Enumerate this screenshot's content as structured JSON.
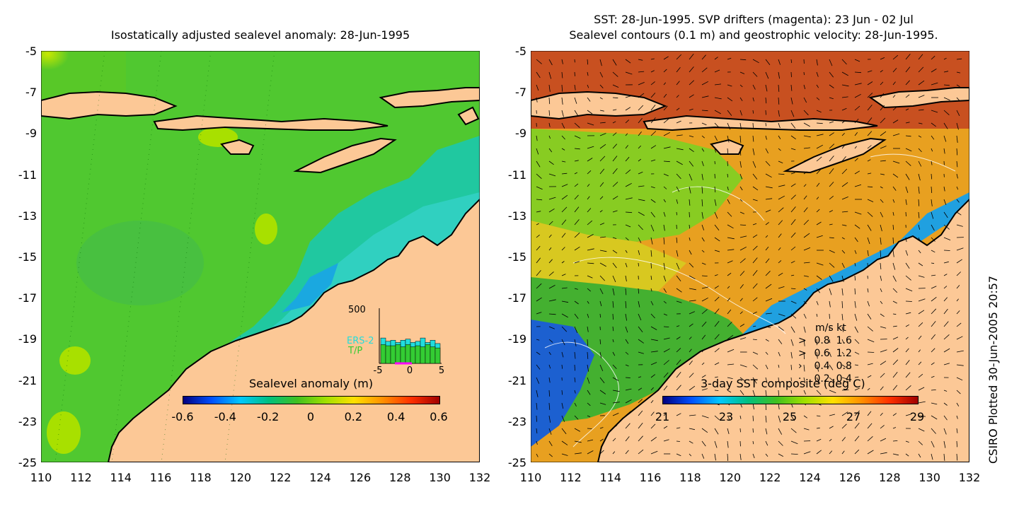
{
  "left_panel": {
    "title": "Isostatically adjusted sealevel anomaly: 28-Jun-1995",
    "y_ticks": [
      "-5",
      "-7",
      "-9",
      "-11",
      "-13",
      "-15",
      "-17",
      "-19",
      "-21",
      "-23",
      "-25"
    ],
    "x_ticks": [
      "110",
      "112",
      "114",
      "116",
      "118",
      "120",
      "122",
      "124",
      "126",
      "128",
      "130",
      "132"
    ],
    "colorbar": {
      "title": "Sealevel anomaly (m)",
      "labels": [
        "-0.6",
        "-0.4",
        "-0.2",
        "0",
        "0.2",
        "0.4",
        "0.6"
      ],
      "colors": [
        "#00007f",
        "#0050ff",
        "#00c8ff",
        "#00c080",
        "#40c020",
        "#a0e000",
        "#ffe000",
        "#ff9000",
        "#ff3000",
        "#a00000"
      ]
    },
    "inset": {
      "ymax_label": "500",
      "series_labels": [
        "ERS-2",
        "T/P"
      ],
      "series_colors": [
        "#22dddd",
        "#33cc33"
      ],
      "x_labels": [
        "-5",
        "0",
        "5"
      ],
      "ers2_counts": [
        230,
        200,
        210,
        190,
        210,
        220,
        190,
        200,
        230,
        190,
        210,
        180
      ],
      "tp_counts": [
        170,
        160,
        160,
        170,
        150,
        170,
        150,
        160,
        150,
        170,
        150,
        140
      ]
    }
  },
  "right_panel": {
    "title_line1": "SST: 28-Jun-1995. SVP drifters (magenta): 23 Jun - 02 Jul",
    "title_line2": "Sealevel contours (0.1 m) and geostrophic velocity: 28-Jun-1995.",
    "y_ticks": [
      "-5",
      "-7",
      "-9",
      "-11",
      "-13",
      "-15",
      "-17",
      "-19",
      "-21",
      "-23",
      "-25"
    ],
    "x_ticks": [
      "110",
      "112",
      "114",
      "116",
      "118",
      "120",
      "122",
      "124",
      "126",
      "128",
      "130",
      "132"
    ],
    "colorbar": {
      "title": "3-day SST composite (deg C)",
      "labels": [
        "21",
        "23",
        "25",
        "27",
        "29"
      ],
      "colors": [
        "#00007f",
        "#0050ff",
        "#00c8ff",
        "#00c080",
        "#40c020",
        "#a0e000",
        "#ffe000",
        "#ff9000",
        "#ff3000",
        "#a00000"
      ]
    },
    "speed_legend": {
      "header": "m/s  kt",
      "rows": [
        {
          "ms": "0.8",
          "kt": "1.6"
        },
        {
          "ms": "0.6",
          "kt": "1.2"
        },
        {
          "ms": "0.4",
          "kt": "0.8"
        },
        {
          "ms": "0.2",
          "kt": "0.4"
        }
      ]
    }
  },
  "credit": "CSIRO Plotted 30-Jun-2005 20:57",
  "colors": {
    "land": "#fcc896",
    "sea_green": "#44c833",
    "sea_teal": "#22ccaa",
    "sst_orange": "#f0a020",
    "sst_red": "#c04020",
    "sst_blue": "#2060e0"
  }
}
